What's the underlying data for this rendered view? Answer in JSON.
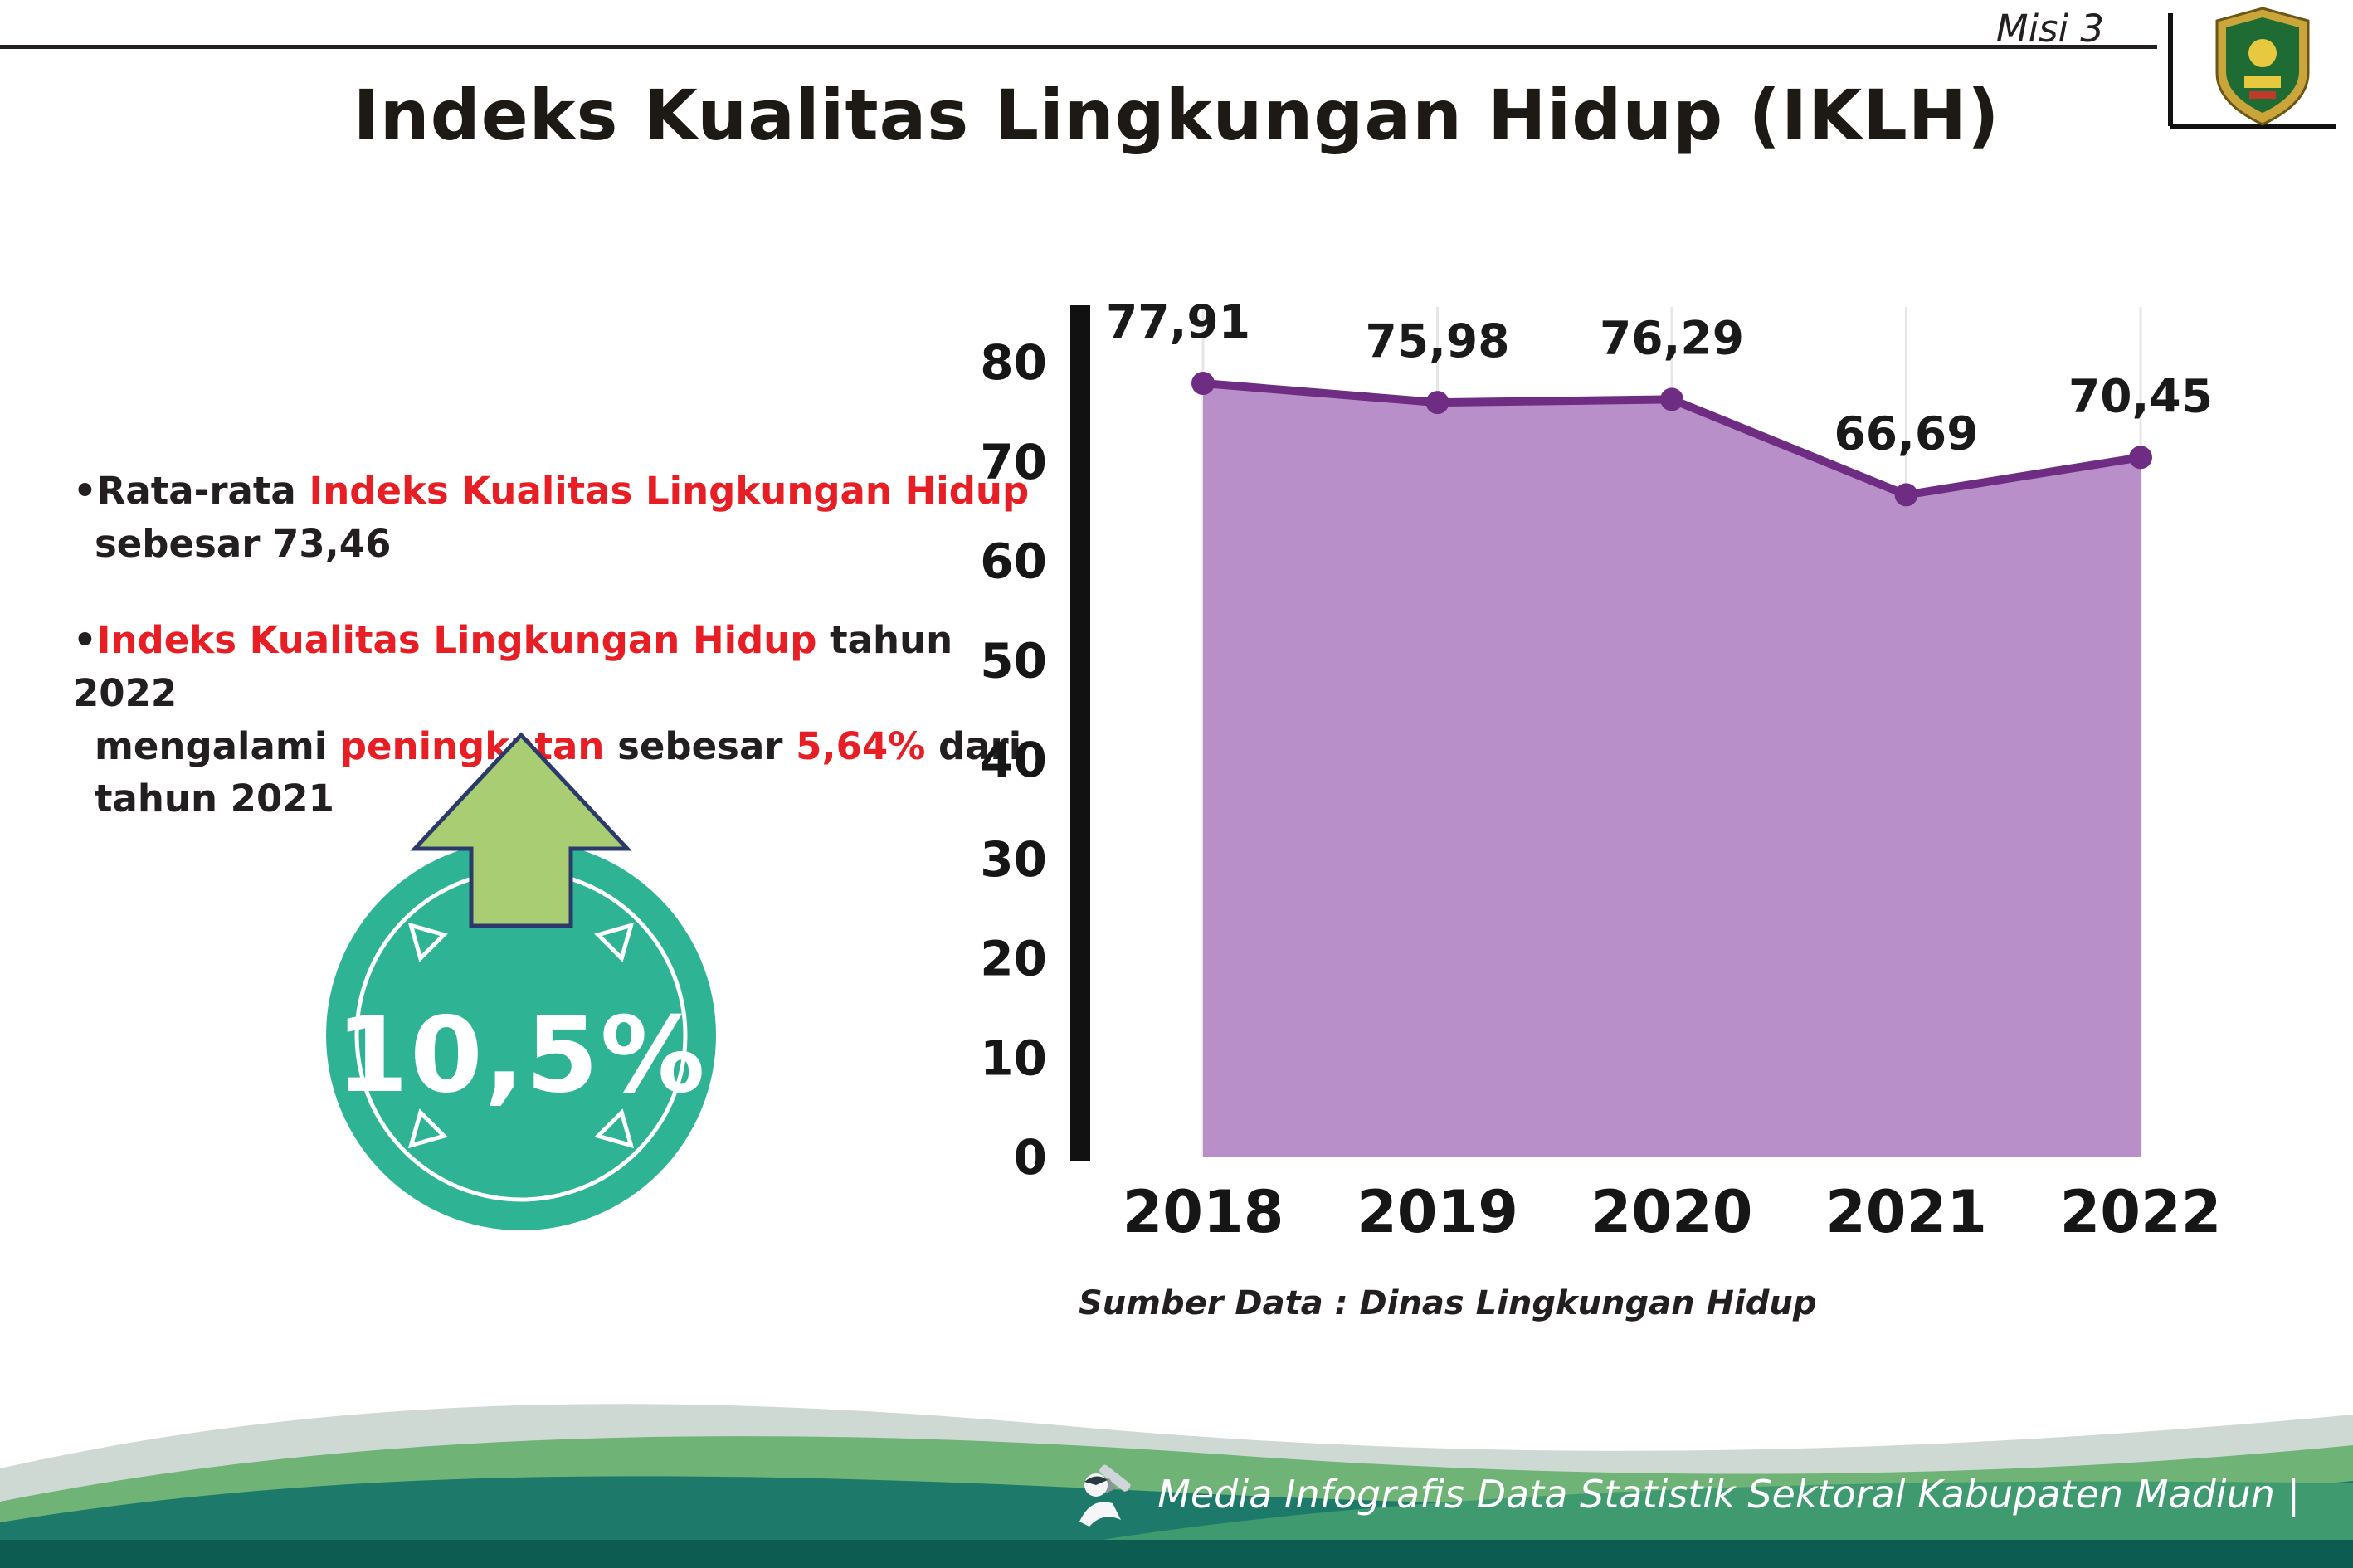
{
  "header": {
    "mission_label": "Misi 3",
    "title": "Indeks Kualitas Lingkungan Hidup (IKLH)"
  },
  "bullets": [
    {
      "lines": [
        [
          {
            "t": "Rata-rata ",
            "s": "plain"
          },
          {
            "t": "Indeks Kualitas Lingkungan Hidup",
            "s": "red"
          }
        ],
        [
          {
            "t": "sebesar 73,46",
            "s": "plain"
          }
        ]
      ]
    },
    {
      "lines": [
        [
          {
            "t": "Indeks Kualitas Lingkungan Hidup",
            "s": "red"
          },
          {
            "t": " tahun 2022",
            "s": "plain"
          }
        ],
        [
          {
            "t": "mengalami ",
            "s": "plain"
          },
          {
            "t": "peningkatan",
            "s": "red"
          },
          {
            "t": " sebesar ",
            "s": "plain"
          },
          {
            "t": "5,64%",
            "s": "red"
          },
          {
            "t": " dari",
            "s": "plain"
          }
        ],
        [
          {
            "t": "tahun 2021",
            "s": "plain"
          }
        ]
      ]
    }
  ],
  "badge": {
    "value": "10,5%"
  },
  "chart_data": {
    "type": "area",
    "categories": [
      "2018",
      "2019",
      "2020",
      "2021",
      "2022"
    ],
    "values": [
      77.91,
      75.98,
      76.29,
      66.69,
      70.45
    ],
    "value_labels": [
      "77,91",
      "75,98",
      "76,29",
      "66,69",
      "70,45"
    ],
    "title": "",
    "xlabel": "",
    "ylabel": "",
    "ylim": [
      0,
      80
    ],
    "ytick_step": 10,
    "grid": "vertical-light",
    "area_color": "#b98fc9",
    "line_color": "#6e2d83",
    "source": "Sumber Data : Dinas Lingkungan Hidup"
  },
  "footer": {
    "caption": "Media Infografis Data Statistik Sektoral Kabupaten Madiun |"
  },
  "colors": {
    "accent_red": "#e81e25",
    "badge_teal": "#2eb394",
    "arrow_green": "#a9cd72",
    "footer_dark_teal": "#1d7a6a",
    "footer_green": "#3f9b6f",
    "footer_bottom_strip": "#0d5c52"
  }
}
